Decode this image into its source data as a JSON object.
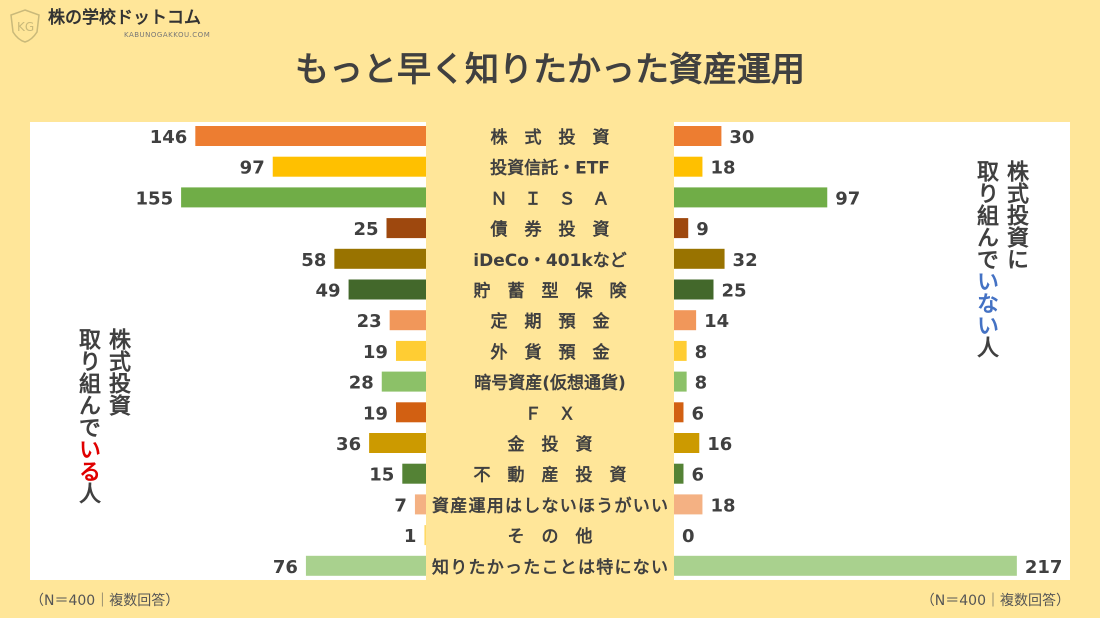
{
  "logo": {
    "name": "株の学校ドットコム",
    "sub": "KABUNOGAKKOU.COM"
  },
  "title": "もっと早く知りたかった資産運用",
  "left_label": {
    "line1": "株式投資",
    "line2a": "取り組んで",
    "line2b": "いる",
    "line2c": "人",
    "accent": "#E00000"
  },
  "right_label": {
    "line1": "株式投資に",
    "line2a": "取り組んで",
    "line2b": "いない",
    "line2c": "人",
    "accent": "#4472C4"
  },
  "note_left": "（N＝400｜複数回答）",
  "note_right": "（N＝400｜複数回答）",
  "chart_data": {
    "type": "bar",
    "orientation": "horizontal-butterfly",
    "categories": [
      "株　式　投　資",
      "投資信託・ETF",
      "Ｎ　Ｉ　Ｓ　Ａ",
      "債　券　投　資",
      "iDeCo・401kなど",
      "貯　蓄　型　保　険",
      "定　期　預　金",
      "外　貨　預　金",
      "暗号資産(仮想通貨)",
      "Ｆ　Ｘ",
      "金　投　資",
      "不　動　産　投　資",
      "資産運用はしないほうがいい",
      "そ　の　他",
      "知りたかったことは特にない"
    ],
    "series": [
      {
        "values": [
          146,
          97,
          155,
          25,
          58,
          49,
          23,
          19,
          28,
          19,
          36,
          15,
          7,
          1,
          76
        ]
      },
      {
        "values": [
          30,
          18,
          97,
          9,
          32,
          25,
          14,
          8,
          8,
          6,
          16,
          6,
          18,
          0,
          217
        ]
      }
    ],
    "colors": [
      "#ED7D31",
      "#FFC000",
      "#70AD47",
      "#9E480E",
      "#997300",
      "#43682B",
      "#F1975A",
      "#FFCD33",
      "#8CC168",
      "#D26012",
      "#CC9A00",
      "#548235",
      "#F4B183",
      "#FFD966",
      "#A9D18E"
    ]
  }
}
